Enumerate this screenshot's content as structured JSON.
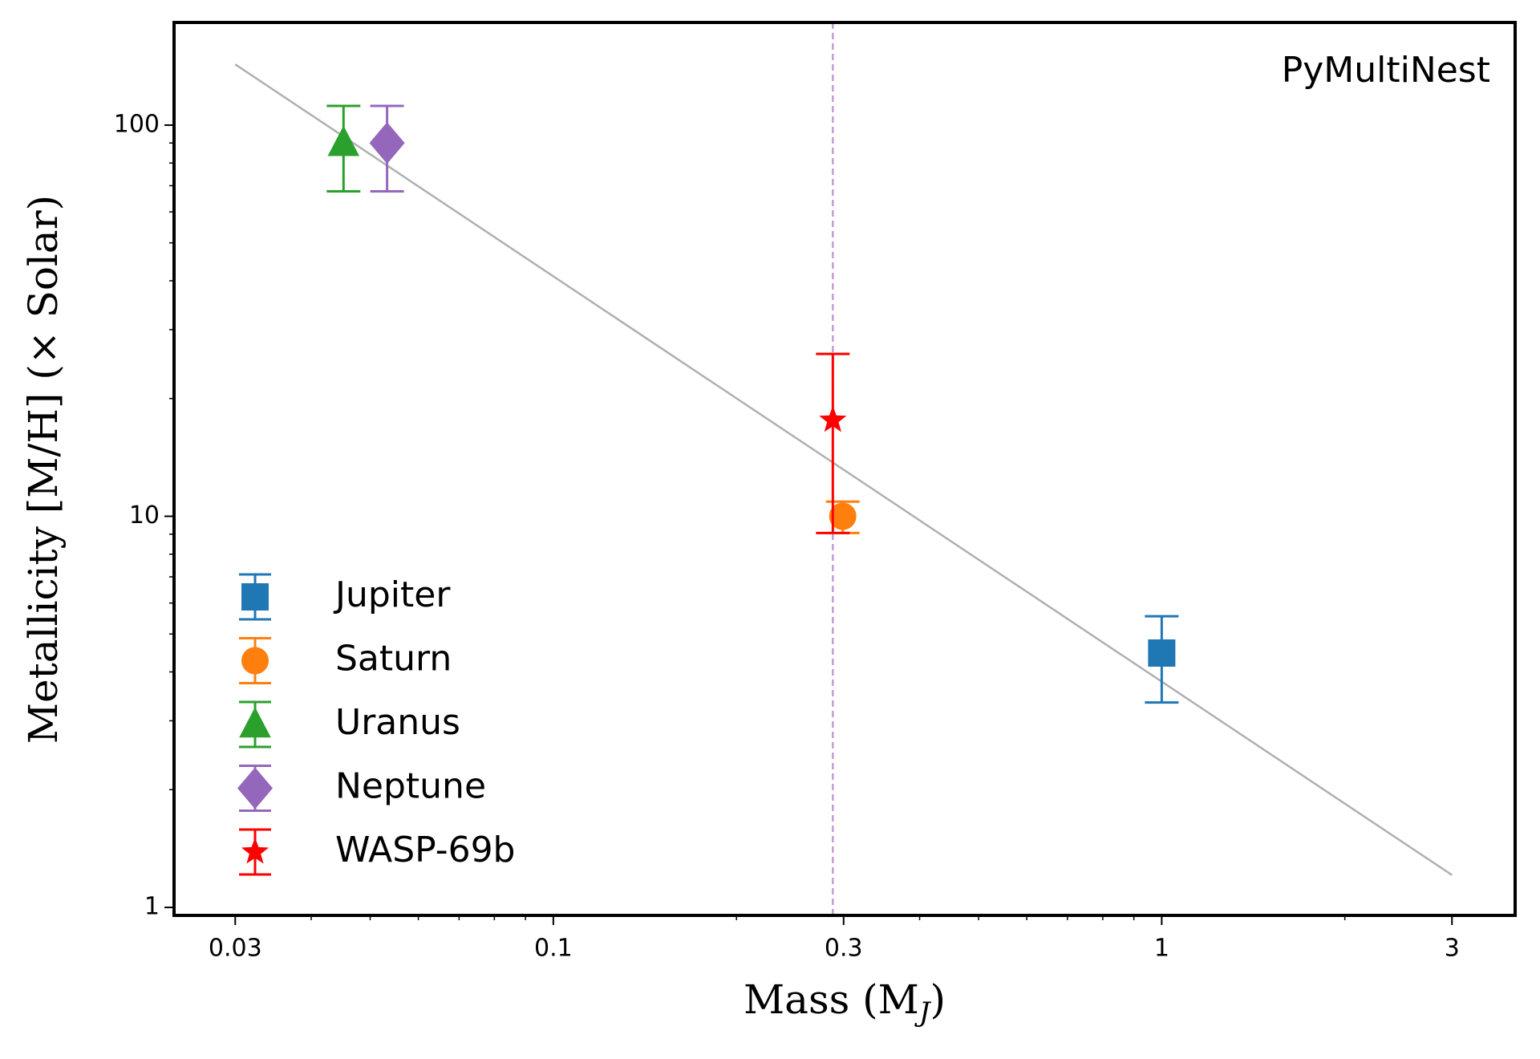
{
  "chart_data": {
    "type": "scatter",
    "xlabel": [
      "Mass (M",
      "J",
      ")"
    ],
    "ylabel": "Metallicity [M/H] (× Solar)",
    "annotation": "PyMultiNest",
    "xscale": "log",
    "yscale": "log",
    "xlim": [
      0.0238,
      3.81
    ],
    "ylim": [
      0.954,
      183
    ],
    "xticks": [
      0.03,
      0.1,
      0.3,
      1,
      3
    ],
    "yticks": [
      1,
      10,
      100
    ],
    "xminor_ticks": [
      0.04,
      0.05,
      0.06,
      0.07,
      0.08,
      0.09,
      0.2,
      0.4,
      0.5,
      0.6,
      0.7,
      0.8,
      0.9,
      2
    ],
    "yminor_ticks": [
      2,
      3,
      4,
      5,
      6,
      7,
      8,
      9,
      20,
      30,
      40,
      50,
      60,
      70,
      80,
      90
    ],
    "legend": "lower left",
    "fit": {
      "x": [
        0.03,
        3
      ],
      "values": [
        143,
        1.21
      ],
      "color": "#b0b0b0"
    },
    "vline": {
      "x": 0.288,
      "color": "#c39bd3"
    },
    "series": [
      {
        "name": "Jupiter",
        "color": "#1f77b4",
        "marker": "square",
        "x": [
          1
        ],
        "values": [
          4.47
        ],
        "yerr_minus": [
          1.13
        ],
        "yerr_plus": [
          1.08
        ]
      },
      {
        "name": "Saturn",
        "color": "#ff7f0e",
        "marker": "circle",
        "x": [
          0.299
        ],
        "values": [
          10
        ],
        "yerr_minus": [
          0.94
        ],
        "yerr_plus": [
          0.9
        ]
      },
      {
        "name": "Uranus",
        "color": "#2ca02c",
        "marker": "triangle",
        "x": [
          0.0452
        ],
        "values": [
          90
        ],
        "yerr_minus": [
          22.3
        ],
        "yerr_plus": [
          22
        ]
      },
      {
        "name": "Neptune",
        "color": "#9467bd",
        "marker": "diamond",
        "x": [
          0.0533
        ],
        "values": [
          90
        ],
        "yerr_minus": [
          22.3
        ],
        "yerr_plus": [
          22
        ]
      },
      {
        "name": "WASP-69b",
        "color": "#ff0000",
        "marker": "star",
        "x": [
          0.288
        ],
        "values": [
          17.6
        ],
        "yerr_minus": [
          8.54
        ],
        "yerr_plus": [
          8.4
        ]
      }
    ]
  }
}
